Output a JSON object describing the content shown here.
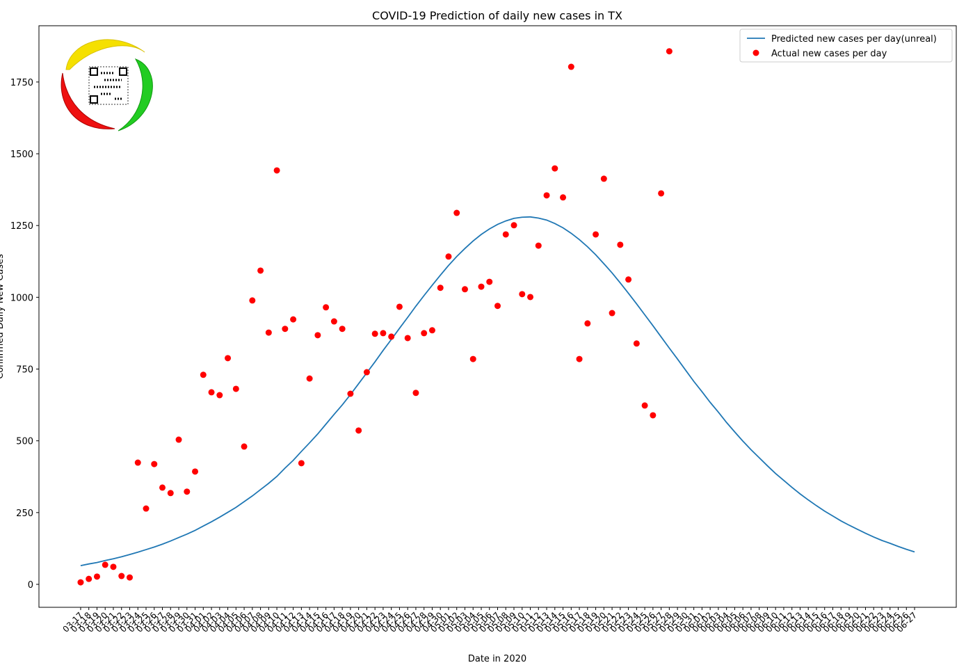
{
  "chart_data": {
    "type": "line",
    "title": "COVID-19 Prediction of daily new cases in TX",
    "xlabel": "Date in 2020",
    "ylabel": "Confirmed Daily New Cases",
    "categories": [
      "03-17",
      "03-18",
      "03-19",
      "03-20",
      "03-21",
      "03-22",
      "03-23",
      "03-24",
      "03-25",
      "03-26",
      "03-27",
      "03-28",
      "03-29",
      "03-30",
      "03-31",
      "04-01",
      "04-02",
      "04-03",
      "04-04",
      "04-05",
      "04-06",
      "04-07",
      "04-08",
      "04-09",
      "04-10",
      "04-11",
      "04-12",
      "04-13",
      "04-14",
      "04-15",
      "04-16",
      "04-17",
      "04-18",
      "04-19",
      "04-20",
      "04-21",
      "04-22",
      "04-23",
      "04-24",
      "04-25",
      "04-26",
      "04-27",
      "04-28",
      "04-29",
      "04-30",
      "05-01",
      "05-02",
      "05-03",
      "05-04",
      "05-05",
      "05-06",
      "05-07",
      "05-08",
      "05-09",
      "05-10",
      "05-11",
      "05-12",
      "05-13",
      "05-14",
      "05-15",
      "05-16",
      "05-17",
      "05-18",
      "05-19",
      "05-20",
      "05-21",
      "05-22",
      "05-23",
      "05-24",
      "05-25",
      "05-26",
      "05-27",
      "05-28",
      "05-29",
      "05-30",
      "05-31",
      "06-01",
      "06-02",
      "06-03",
      "06-04",
      "06-05",
      "06-06",
      "06-07",
      "06-08",
      "06-09",
      "06-10",
      "06-11",
      "06-12",
      "06-13",
      "06-14",
      "06-15",
      "06-16",
      "06-17",
      "06-18",
      "06-19",
      "06-20",
      "06-21",
      "06-22",
      "06-23",
      "06-24",
      "06-25",
      "06-26",
      "06-27"
    ],
    "series": [
      {
        "name": "Predicted new cases per day(unreal)",
        "type": "line",
        "color": "#1f77b4",
        "values": [
          65,
          71,
          76,
          83,
          89,
          96,
          104,
          112,
          121,
          130,
          140,
          151,
          163,
          175,
          188,
          203,
          218,
          234,
          251,
          268,
          288,
          308,
          330,
          352,
          376,
          405,
          432,
          463,
          493,
          524,
          558,
          592,
          625,
          661,
          699,
          737,
          775,
          815,
          853,
          892,
          930,
          969,
          1006,
          1042,
          1077,
          1111,
          1142,
          1170,
          1196,
          1219,
          1238,
          1254,
          1266,
          1275,
          1279,
          1280,
          1276,
          1269,
          1257,
          1242,
          1223,
          1201,
          1176,
          1148,
          1117,
          1085,
          1050,
          1014,
          977,
          939,
          901,
          862,
          823,
          785,
          746,
          707,
          671,
          634,
          600,
          564,
          531,
          499,
          469,
          441,
          413,
          386,
          362,
          338,
          315,
          294,
          274,
          255,
          238,
          221,
          206,
          192,
          178,
          165,
          153,
          143,
          132,
          122,
          113
        ]
      },
      {
        "name": "Actual new cases per day",
        "type": "scatter",
        "color": "#ff0000",
        "values": [
          7,
          19,
          27,
          68,
          61,
          29,
          24,
          424,
          264,
          419,
          337,
          318,
          504,
          323,
          393,
          730,
          669,
          659,
          788,
          681,
          480,
          989,
          1093,
          877,
          1442,
          890,
          923,
          422,
          717,
          868,
          965,
          916,
          890,
          664,
          536,
          739,
          873,
          875,
          863,
          967,
          858,
          667,
          875,
          885,
          1033,
          1142,
          1294,
          1028,
          785,
          1037,
          1054,
          970,
          1219,
          1251,
          1011,
          1001,
          1180,
          1355,
          1449,
          1348,
          1803,
          785,
          909,
          1219,
          1413,
          945,
          1183,
          1062,
          839,
          623,
          589,
          1362,
          1857,
          null,
          null,
          null,
          null,
          null,
          null,
          null,
          null,
          null,
          null,
          null,
          null,
          null,
          null,
          null,
          null,
          null,
          null,
          null,
          null,
          null,
          null,
          null,
          null,
          null,
          null,
          null,
          null,
          null
        ]
      }
    ],
    "ylim": [
      -80,
      1946
    ],
    "yticks": [
      0,
      250,
      500,
      750,
      1000,
      1250,
      1500,
      1750
    ],
    "legend": "upper right"
  }
}
